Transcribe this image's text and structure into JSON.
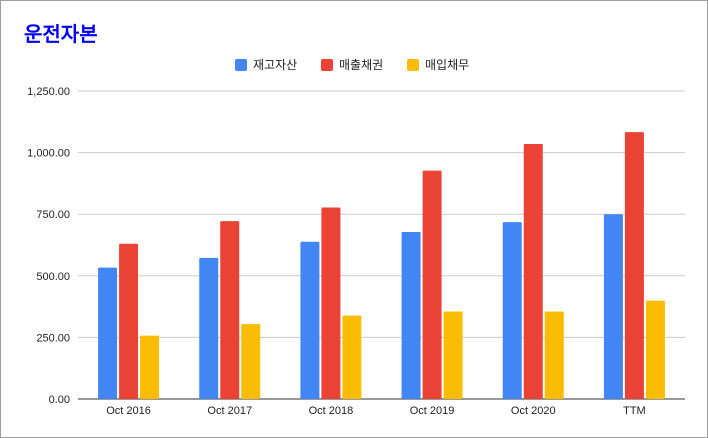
{
  "chart_data": {
    "type": "bar",
    "title": "운전자본",
    "categories": [
      "Oct 2016",
      "Oct 2017",
      "Oct 2018",
      "Oct 2019",
      "Oct 2020",
      "TTM"
    ],
    "series": [
      {
        "name": "재고자산",
        "color": "#4285f4",
        "values": [
          533,
          573,
          638,
          678,
          718,
          750
        ]
      },
      {
        "name": "매출채권",
        "color": "#ea4335",
        "values": [
          630,
          722,
          777,
          927,
          1035,
          1083
        ]
      },
      {
        "name": "매입채무",
        "color": "#fbbc04",
        "values": [
          257,
          304,
          339,
          355,
          355,
          399
        ]
      }
    ],
    "y_ticks": [
      "0.00",
      "250.00",
      "500.00",
      "750.00",
      "1,000.00",
      "1,250.00"
    ],
    "ylim": [
      0,
      1250
    ],
    "legend_position": "top-center",
    "grid": true
  }
}
